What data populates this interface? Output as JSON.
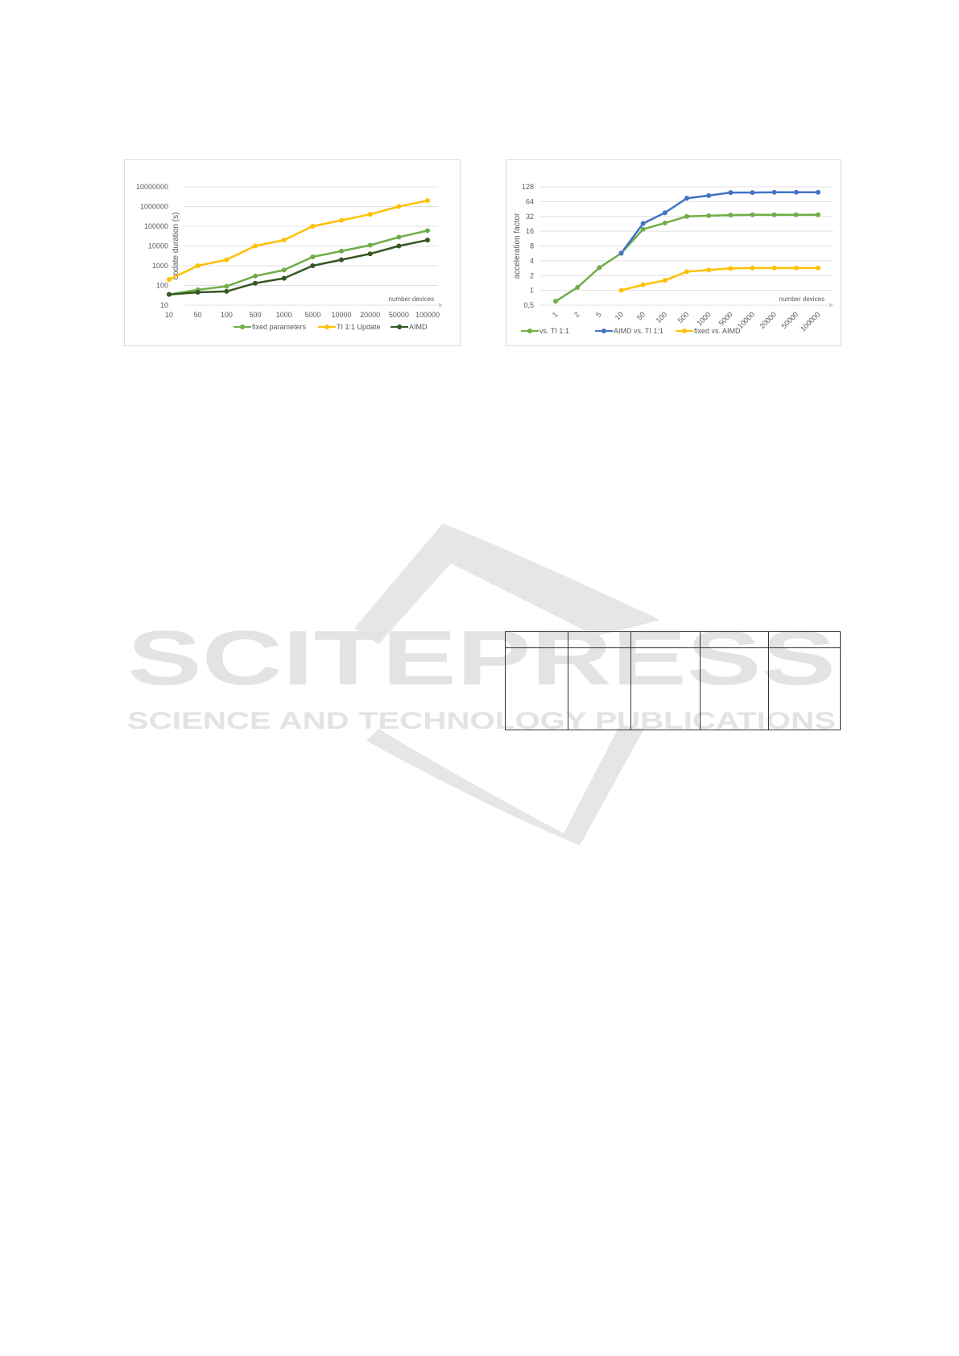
{
  "watermark": {
    "title": "SCITEPRESS",
    "subtitle": "SCIENCE AND TECHNOLOGY PUBLICATIONS"
  },
  "chart_data": [
    {
      "type": "line",
      "ylabel": "update duration (s)",
      "xlabel": "number devices",
      "yscale": "log10",
      "ylim": [
        10,
        10000000
      ],
      "yticks": [
        "10",
        "100",
        "1000",
        "10000",
        "100000",
        "1000000",
        "10000000"
      ],
      "grid": true,
      "legend": "bottom",
      "categories": [
        "10",
        "50",
        "100",
        "500",
        "1000",
        "5000",
        "10000",
        "20000",
        "50000",
        "100000"
      ],
      "series": [
        {
          "name": "fixed parameters",
          "color": "#70ad47",
          "values": [
            35,
            60,
            90,
            300,
            600,
            2800,
            5500,
            11000,
            28000,
            60000
          ]
        },
        {
          "name": "TI 1:1 Update",
          "color": "#ffc000",
          "values": [
            200,
            1000,
            2000,
            10000,
            20000,
            100000,
            200000,
            400000,
            1000000,
            2000000
          ]
        },
        {
          "name": "AIMD",
          "color": "#375623",
          "values": [
            35,
            45,
            50,
            130,
            230,
            1000,
            2000,
            4000,
            10000,
            20000
          ]
        }
      ]
    },
    {
      "type": "line",
      "ylabel": "acceleration factor",
      "xlabel": "number devices",
      "yscale": "log2",
      "ylim": [
        0.5,
        128
      ],
      "yticks": [
        "0,5",
        "1",
        "2",
        "4",
        "8",
        "16",
        "32",
        "64",
        "128"
      ],
      "grid": true,
      "legend": "bottom",
      "categories": [
        "1",
        "2",
        "5",
        "10",
        "50",
        "100",
        "500",
        "1000",
        "5000",
        "10000",
        "20000",
        "50000",
        "100000"
      ],
      "series": [
        {
          "name": "vs. TI 1:1",
          "color": "#70ad47",
          "values": [
            0.6,
            1.15,
            2.9,
            5.7,
            17.5,
            23.5,
            32,
            33,
            34,
            34.5,
            34.5,
            34.5,
            34.5
          ]
        },
        {
          "name": "AIMD vs. TI 1:1",
          "color": "#4472c4",
          "values": [
            null,
            null,
            null,
            5.7,
            23,
            38,
            75,
            85,
            98,
            98,
            99,
            99,
            99
          ]
        },
        {
          "name": "fixed vs. AIMD",
          "color": "#ffc000",
          "values": [
            null,
            null,
            null,
            1,
            1.3,
            1.6,
            2.4,
            2.6,
            2.8,
            2.85,
            2.85,
            2.85,
            2.85
          ]
        }
      ]
    }
  ]
}
